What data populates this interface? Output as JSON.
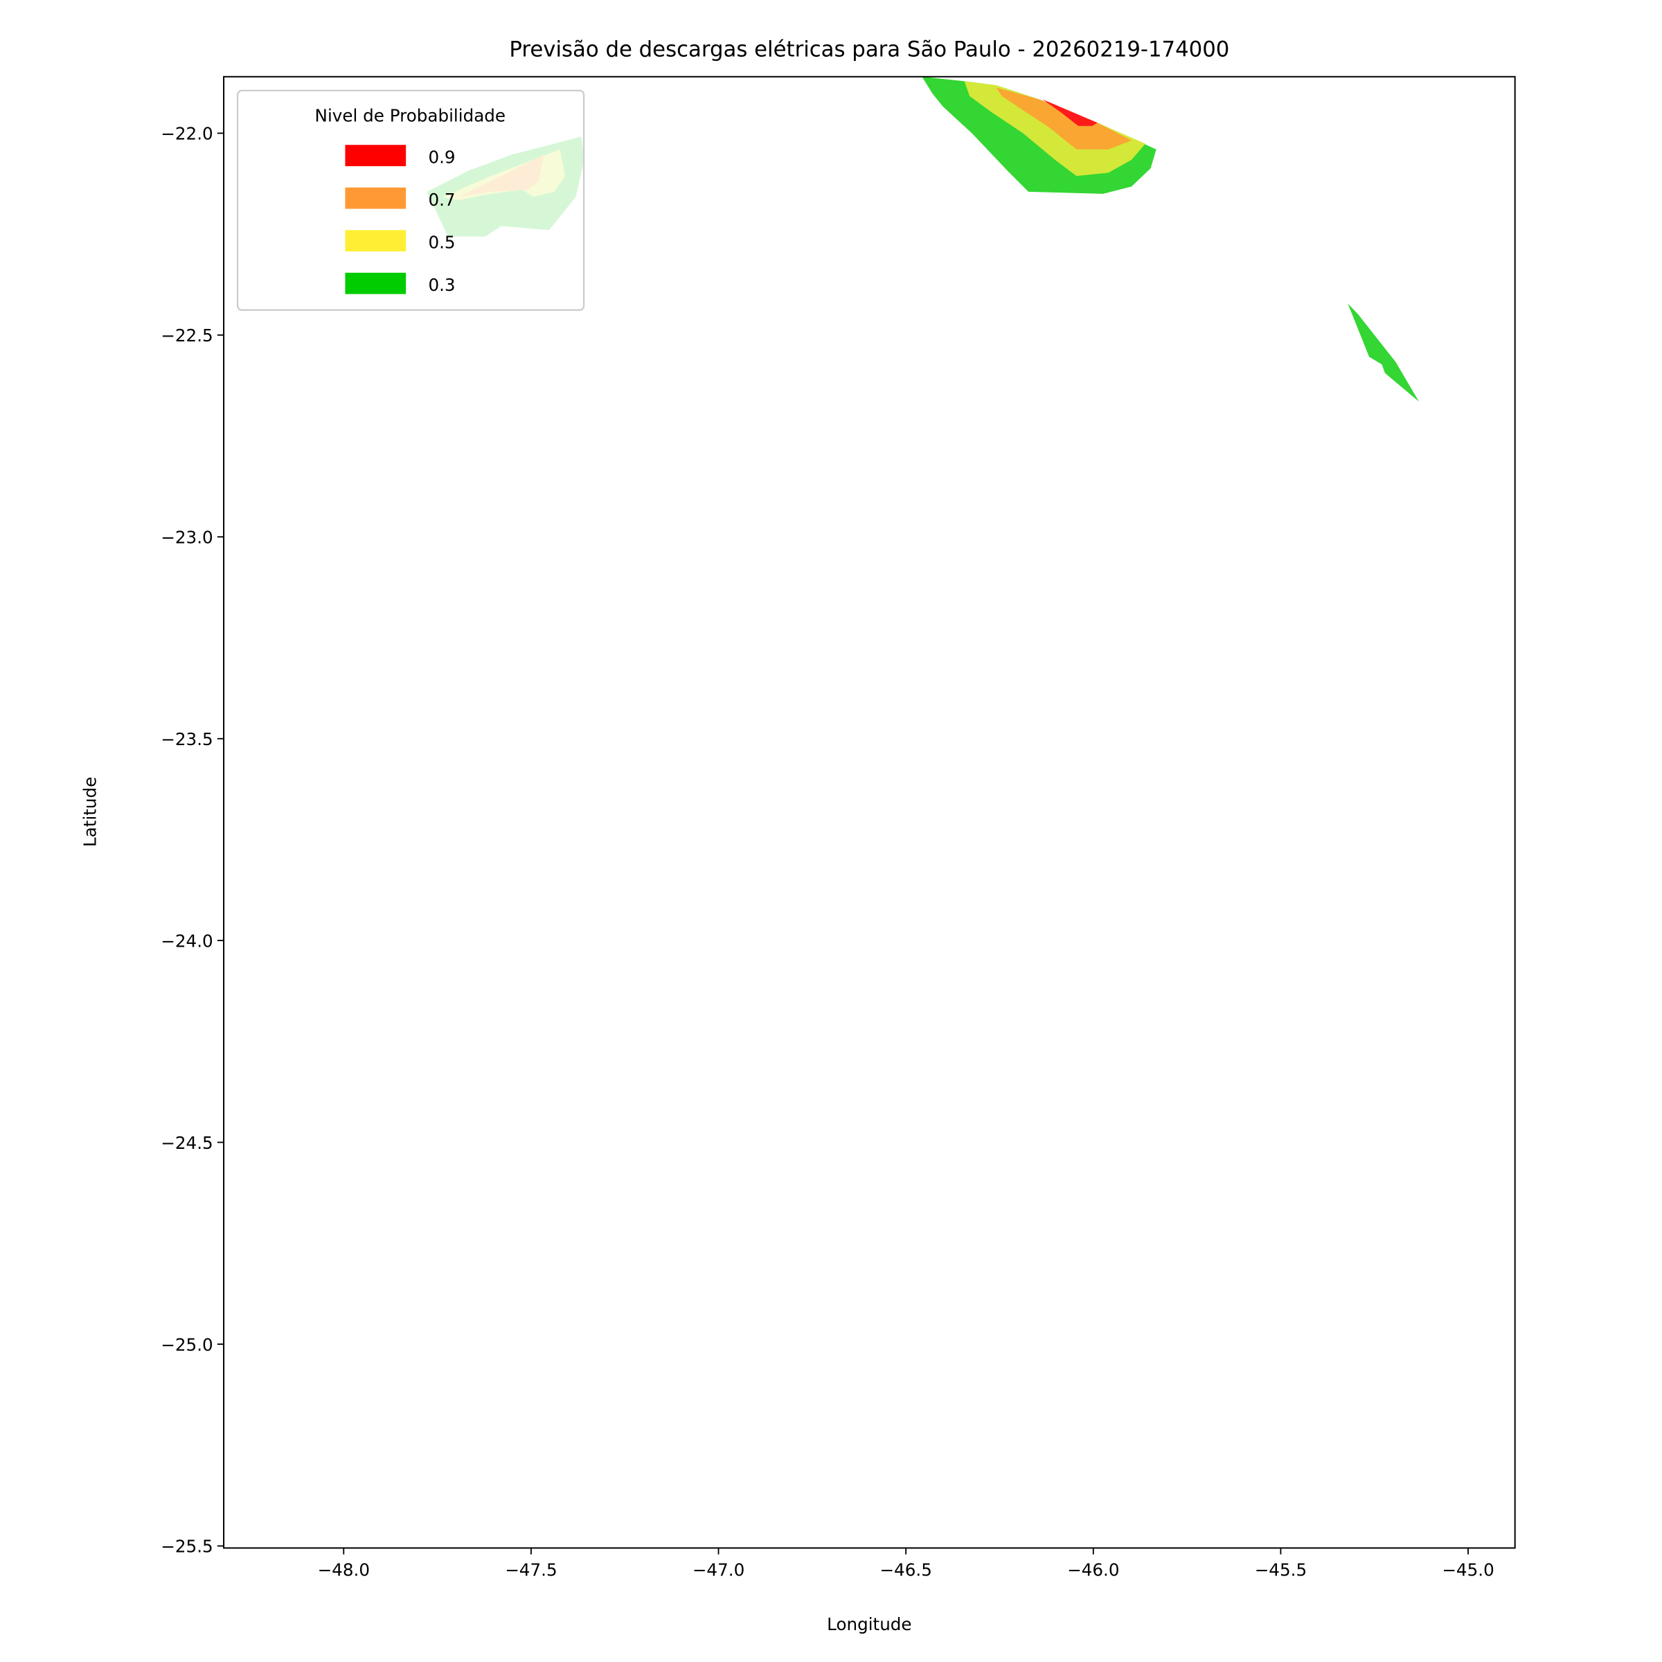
{
  "chart_data": {
    "type": "contour",
    "title": "Previsão de descargas elétricas para São Paulo - 20260219-174000",
    "xlabel": "Longitude",
    "ylabel": "Latitude",
    "xlim": [
      -48.32,
      -44.875
    ],
    "ylim": [
      -25.505,
      -21.86
    ],
    "xticks": [
      -48.0,
      -47.5,
      -47.0,
      -46.5,
      -46.0,
      -45.5,
      -45.0
    ],
    "xtick_labels": [
      "−48.0",
      "−47.5",
      "−47.0",
      "−46.5",
      "−46.0",
      "−45.5",
      "−45.0"
    ],
    "yticks": [
      -22.0,
      -22.5,
      -23.0,
      -23.5,
      -24.0,
      -24.5,
      -25.0,
      -25.5
    ],
    "ytick_labels": [
      "−22.0",
      "−22.5",
      "−23.0",
      "−23.5",
      "−24.0",
      "−24.5",
      "−25.0",
      "−25.5"
    ],
    "grid": false,
    "legend": {
      "title": "Nivel de Probabilidade",
      "placement": "top-left",
      "entries": [
        {
          "label": "0.9",
          "color": "#ff0000"
        },
        {
          "label": "0.7",
          "color": "#ff9933"
        },
        {
          "label": "0.5",
          "color": "#ffee33"
        },
        {
          "label": "0.3",
          "color": "#00cc00"
        }
      ]
    },
    "level_fill_colors": {
      "0.3": "#33d633",
      "0.5": "#d4e83a",
      "0.7": "#f9a633",
      "0.9": "#ff1a1a"
    },
    "regions": [
      {
        "level": "0.3",
        "lon": [
          -46.457,
          -46.344,
          -46.259,
          -46.145,
          -45.989,
          -45.832,
          -45.847,
          -45.898,
          -45.974,
          -46.173,
          -46.23,
          -46.324,
          -46.401,
          -46.429
        ],
        "lat": [
          -21.86,
          -21.871,
          -21.881,
          -21.916,
          -21.974,
          -22.04,
          -22.087,
          -22.132,
          -22.15,
          -22.145,
          -22.092,
          -22.0,
          -21.934,
          -21.902
        ]
      },
      {
        "level": "0.5",
        "lon": [
          -46.344,
          -46.259,
          -46.145,
          -45.989,
          -45.861,
          -45.898,
          -45.96,
          -46.045,
          -46.102,
          -46.188,
          -46.273,
          -46.33
        ],
        "lat": [
          -21.871,
          -21.881,
          -21.916,
          -21.974,
          -22.026,
          -22.066,
          -22.098,
          -22.106,
          -22.066,
          -22.0,
          -21.947,
          -21.908
        ]
      },
      {
        "level": "0.7",
        "lon": [
          -46.259,
          -46.145,
          -45.989,
          -45.898,
          -45.96,
          -46.045,
          -46.116,
          -46.202,
          -46.244
        ],
        "lat": [
          -21.887,
          -21.916,
          -21.974,
          -22.018,
          -22.04,
          -22.04,
          -21.987,
          -21.934,
          -21.908
        ]
      },
      {
        "level": "0.9",
        "lon": [
          -46.136,
          -45.989,
          -46.003,
          -46.04,
          -46.088
        ],
        "lat": [
          -21.916,
          -21.974,
          -21.982,
          -21.982,
          -21.947
        ]
      },
      {
        "level": "0.3",
        "lon": [
          -47.778,
          -47.665,
          -47.551,
          -47.438,
          -47.366,
          -47.358,
          -47.381,
          -47.452,
          -47.58,
          -47.622,
          -47.722,
          -47.764
        ],
        "lat": [
          -22.145,
          -22.092,
          -22.053,
          -22.026,
          -22.008,
          -22.066,
          -22.158,
          -22.24,
          -22.23,
          -22.256,
          -22.256,
          -22.172
        ]
      },
      {
        "level": "0.5",
        "lon": [
          -47.736,
          -47.608,
          -47.494,
          -47.423,
          -47.409,
          -47.438,
          -47.494,
          -47.523,
          -47.608,
          -47.693
        ],
        "lat": [
          -22.158,
          -22.106,
          -22.066,
          -22.04,
          -22.106,
          -22.145,
          -22.158,
          -22.14,
          -22.15,
          -22.166
        ]
      },
      {
        "level": "0.7",
        "lon": [
          -47.693,
          -47.58,
          -47.466,
          -47.48,
          -47.509,
          -47.608
        ],
        "lat": [
          -22.158,
          -22.106,
          -22.053,
          -22.119,
          -22.14,
          -22.145
        ]
      },
      {
        "level": "0.3",
        "lon": [
          -45.321,
          -45.293,
          -45.193,
          -45.131,
          -45.222,
          -45.23,
          -45.264
        ],
        "lat": [
          -22.422,
          -22.449,
          -22.567,
          -22.665,
          -22.594,
          -22.573,
          -22.554
        ]
      }
    ]
  }
}
